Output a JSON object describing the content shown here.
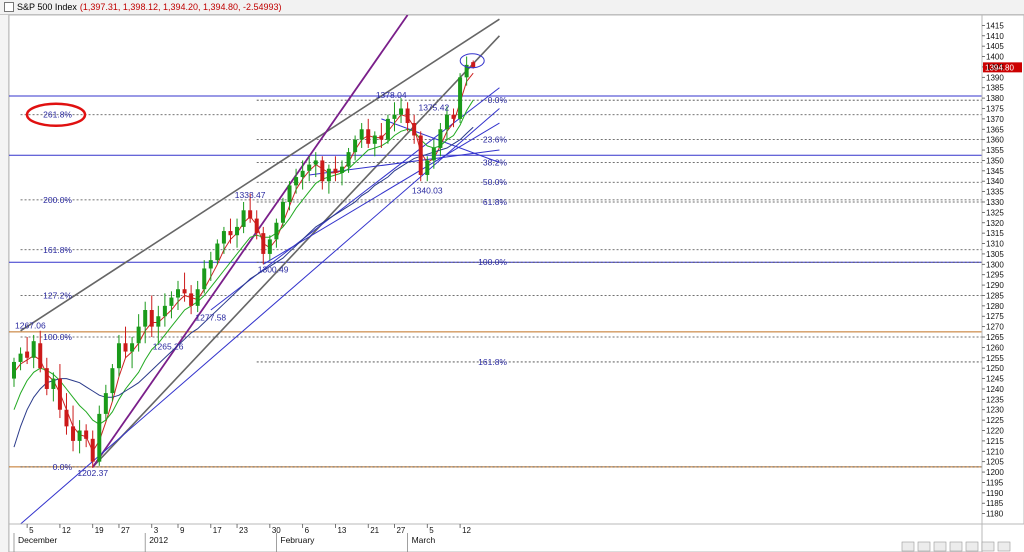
{
  "window": {
    "title": "S&P 500 Index",
    "ohlc": "(1,397.31, 1,398.12, 1,394.20, 1,394.80, -2.54993)"
  },
  "chart_data": {
    "type": "candlestick",
    "instrument": "S&P 500 Index",
    "ylim": [
      1175,
      1420
    ],
    "y_ticks": [
      1180,
      1185,
      1190,
      1195,
      1200,
      1205,
      1210,
      1215,
      1220,
      1225,
      1230,
      1235,
      1240,
      1245,
      1250,
      1255,
      1260,
      1265,
      1270,
      1275,
      1280,
      1285,
      1290,
      1295,
      1300,
      1305,
      1310,
      1315,
      1320,
      1325,
      1330,
      1335,
      1340,
      1345,
      1350,
      1355,
      1360,
      1365,
      1370,
      1375,
      1380,
      1385,
      1390,
      1395,
      1400,
      1405,
      1410,
      1415
    ],
    "last_price_label": "1394.80",
    "x_day_ticks": [
      {
        "label": "5",
        "i": 2
      },
      {
        "label": "12",
        "i": 7
      },
      {
        "label": "19",
        "i": 12
      },
      {
        "label": "27",
        "i": 16
      },
      {
        "label": "3",
        "i": 21
      },
      {
        "label": "9",
        "i": 25
      },
      {
        "label": "17",
        "i": 30
      },
      {
        "label": "23",
        "i": 34
      },
      {
        "label": "30",
        "i": 39
      },
      {
        "label": "6",
        "i": 44
      },
      {
        "label": "13",
        "i": 49
      },
      {
        "label": "21",
        "i": 54
      },
      {
        "label": "27",
        "i": 58
      },
      {
        "label": "5",
        "i": 63
      },
      {
        "label": "12",
        "i": 68
      }
    ],
    "x_month_labels": [
      {
        "label": "December",
        "i": 0
      },
      {
        "label": "2012",
        "i": 20
      },
      {
        "label": "February",
        "i": 40
      },
      {
        "label": "March",
        "i": 60
      }
    ],
    "candles": [
      [
        1245,
        1255,
        1241,
        1253
      ],
      [
        1253,
        1260,
        1249,
        1257
      ],
      [
        1258,
        1265,
        1252,
        1255
      ],
      [
        1255,
        1266,
        1250,
        1263
      ],
      [
        1262,
        1268,
        1248,
        1250
      ],
      [
        1250,
        1255,
        1237,
        1240
      ],
      [
        1240,
        1248,
        1234,
        1245
      ],
      [
        1245,
        1252,
        1226,
        1230
      ],
      [
        1230,
        1238,
        1218,
        1222
      ],
      [
        1222,
        1232,
        1210,
        1215
      ],
      [
        1215,
        1225,
        1209,
        1220
      ],
      [
        1220,
        1223,
        1212,
        1216
      ],
      [
        1216,
        1220,
        1202,
        1205
      ],
      [
        1205,
        1232,
        1203,
        1228
      ],
      [
        1228,
        1242,
        1225,
        1238
      ],
      [
        1238,
        1252,
        1234,
        1250
      ],
      [
        1250,
        1266,
        1246,
        1262
      ],
      [
        1262,
        1270,
        1255,
        1258
      ],
      [
        1258,
        1265,
        1250,
        1262
      ],
      [
        1262,
        1276,
        1258,
        1270
      ],
      [
        1270,
        1282,
        1262,
        1278
      ],
      [
        1278,
        1285,
        1265,
        1270
      ],
      [
        1270,
        1280,
        1262,
        1275
      ],
      [
        1275,
        1286,
        1270,
        1280
      ],
      [
        1280,
        1287,
        1274,
        1284
      ],
      [
        1284,
        1292,
        1278,
        1288
      ],
      [
        1288,
        1296,
        1282,
        1286
      ],
      [
        1286,
        1290,
        1276,
        1280
      ],
      [
        1280,
        1292,
        1277,
        1288
      ],
      [
        1288,
        1302,
        1286,
        1298
      ],
      [
        1298,
        1306,
        1292,
        1302
      ],
      [
        1302,
        1312,
        1300,
        1310
      ],
      [
        1310,
        1318,
        1305,
        1316
      ],
      [
        1316,
        1322,
        1310,
        1314
      ],
      [
        1314,
        1322,
        1308,
        1318
      ],
      [
        1318,
        1330,
        1315,
        1326
      ],
      [
        1326,
        1334,
        1320,
        1322
      ],
      [
        1322,
        1326,
        1312,
        1315
      ],
      [
        1315,
        1318,
        1300,
        1305
      ],
      [
        1305,
        1314,
        1302,
        1312
      ],
      [
        1312,
        1322,
        1308,
        1320
      ],
      [
        1320,
        1332,
        1318,
        1330
      ],
      [
        1330,
        1340,
        1326,
        1338
      ],
      [
        1338,
        1346,
        1334,
        1342
      ],
      [
        1342,
        1350,
        1336,
        1345
      ],
      [
        1345,
        1352,
        1340,
        1348
      ],
      [
        1348,
        1354,
        1342,
        1350
      ],
      [
        1350,
        1352,
        1336,
        1340
      ],
      [
        1340,
        1348,
        1334,
        1346
      ],
      [
        1346,
        1352,
        1340,
        1344
      ],
      [
        1344,
        1350,
        1338,
        1347
      ],
      [
        1347,
        1356,
        1344,
        1354
      ],
      [
        1354,
        1362,
        1350,
        1360
      ],
      [
        1360,
        1368,
        1356,
        1365
      ],
      [
        1365,
        1370,
        1356,
        1358
      ],
      [
        1358,
        1364,
        1352,
        1362
      ],
      [
        1362,
        1368,
        1356,
        1360
      ],
      [
        1360,
        1372,
        1358,
        1370
      ],
      [
        1370,
        1378,
        1364,
        1372
      ],
      [
        1372,
        1380,
        1368,
        1375
      ],
      [
        1375,
        1378,
        1364,
        1368
      ],
      [
        1368,
        1372,
        1358,
        1362
      ],
      [
        1362,
        1364,
        1340,
        1343
      ],
      [
        1343,
        1352,
        1340,
        1350
      ],
      [
        1350,
        1360,
        1346,
        1356
      ],
      [
        1356,
        1368,
        1352,
        1365
      ],
      [
        1365,
        1376,
        1360,
        1372
      ],
      [
        1372,
        1375,
        1366,
        1370
      ],
      [
        1370,
        1392,
        1368,
        1390
      ],
      [
        1390,
        1400,
        1386,
        1396
      ],
      [
        1397.31,
        1398.12,
        1394.2,
        1394.8
      ]
    ],
    "horizontal_lines": [
      {
        "y": 1381,
        "color": "#3333cc",
        "style": "solid",
        "label": ""
      },
      {
        "y": 1352.5,
        "color": "#3333cc",
        "style": "solid",
        "label": ""
      },
      {
        "y": 1301,
        "color": "#3333cc",
        "style": "solid",
        "label": ""
      },
      {
        "y": 1267.5,
        "color": "#c07020",
        "style": "solid",
        "label": ""
      },
      {
        "y": 1202.5,
        "color": "#c07020",
        "style": "solid",
        "label": ""
      }
    ],
    "fib_left": {
      "x_start_i": 1,
      "levels": [
        {
          "y": 1372,
          "label": "261.8%"
        },
        {
          "y": 1331,
          "label": "200.0%"
        },
        {
          "y": 1307,
          "label": "161.8%"
        },
        {
          "y": 1285,
          "label": "127.2%"
        },
        {
          "y": 1265,
          "label": "100.0%"
        },
        {
          "y": 1202.5,
          "label": "0.0%"
        }
      ]
    },
    "fib_right": {
      "x_start_i": 37,
      "levels": [
        {
          "y": 1379,
          "label": "0.0%"
        },
        {
          "y": 1360,
          "label": "23.6%"
        },
        {
          "y": 1349,
          "label": "38.2%"
        },
        {
          "y": 1339.5,
          "label": "50.0%"
        },
        {
          "y": 1330,
          "label": "61.8%"
        },
        {
          "y": 1301,
          "label": "100.0%"
        },
        {
          "y": 1253,
          "label": "161.8%"
        }
      ]
    },
    "trend_lines": [
      {
        "from": [
          1,
          1268
        ],
        "to": [
          74,
          1418
        ],
        "color": "#666666",
        "width": 1.6
      },
      {
        "from": [
          12,
          1202.37
        ],
        "to": [
          74,
          1410
        ],
        "color": "#666666",
        "width": 1.6
      },
      {
        "from": [
          12,
          1202.37
        ],
        "to": [
          60,
          1420
        ],
        "color": "#7a1f8a",
        "width": 1.8
      },
      {
        "from": [
          1,
          1175
        ],
        "to": [
          74,
          1375
        ],
        "color": "#3333cc",
        "width": 1
      },
      {
        "from": [
          30,
          1278
        ],
        "to": [
          74,
          1385
        ],
        "color": "#3333cc",
        "width": 1
      },
      {
        "from": [
          38,
          1300
        ],
        "to": [
          74,
          1368
        ],
        "color": "#3333cc",
        "width": 1
      },
      {
        "from": [
          45,
          1343
        ],
        "to": [
          74,
          1355
        ],
        "color": "#3333cc",
        "width": 1
      },
      {
        "from": [
          56,
          1370
        ],
        "to": [
          74,
          1349
        ],
        "color": "#3333cc",
        "width": 1
      }
    ],
    "annotations": [
      {
        "text": "1202.37",
        "i": 12,
        "y": 1198
      },
      {
        "text": "1267.06",
        "i": 2.5,
        "y": 1269
      },
      {
        "text": "1265.26",
        "i": 23.5,
        "y": 1259
      },
      {
        "text": "1277.58",
        "i": 30,
        "y": 1273
      },
      {
        "text": "1333.47",
        "i": 36,
        "y": 1332
      },
      {
        "text": "1300.49",
        "i": 39.5,
        "y": 1296
      },
      {
        "text": "1378.04",
        "i": 57.5,
        "y": 1380
      },
      {
        "text": "1375.42",
        "i": 64,
        "y": 1374
      },
      {
        "text": "1340.03",
        "i": 63,
        "y": 1334
      }
    ],
    "ma_series": [
      {
        "name": "",
        "color": "#cc2222",
        "values": [
          1248,
          1252,
          1254,
          1256,
          1254,
          1247,
          1244,
          1238,
          1230,
          1222,
          1218,
          1217,
          1210,
          1215,
          1224,
          1234,
          1246,
          1255,
          1258,
          1262,
          1268,
          1272,
          1272,
          1275,
          1278,
          1282,
          1285,
          1284,
          1283,
          1288,
          1294,
          1300,
          1307,
          1312,
          1315,
          1320,
          1323,
          1319,
          1310,
          1308,
          1312,
          1320,
          1328,
          1336,
          1341,
          1345,
          1348,
          1346,
          1344,
          1344,
          1345,
          1349,
          1355,
          1360,
          1362,
          1361,
          1361,
          1364,
          1368,
          1372,
          1371,
          1366,
          1354,
          1349,
          1351,
          1357,
          1364,
          1368,
          1378,
          1388,
          1392
        ]
      },
      {
        "name": "",
        "color": "#22aa22",
        "values": [
          1230,
          1238,
          1244,
          1248,
          1250,
          1249,
          1247,
          1244,
          1240,
          1236,
          1232,
          1229,
          1225,
          1223,
          1225,
          1229,
          1235,
          1240,
          1244,
          1248,
          1254,
          1259,
          1262,
          1266,
          1270,
          1274,
          1278,
          1280,
          1282,
          1285,
          1289,
          1293,
          1297,
          1301,
          1305,
          1309,
          1313,
          1314,
          1313,
          1313,
          1315,
          1318,
          1322,
          1327,
          1331,
          1335,
          1339,
          1341,
          1342,
          1343,
          1344,
          1346,
          1349,
          1352,
          1355,
          1356,
          1357,
          1359,
          1362,
          1364,
          1365,
          1364,
          1360,
          1357,
          1356,
          1357,
          1360,
          1362,
          1367,
          1374,
          1379
        ]
      },
      {
        "name": "",
        "color": "#2a3a8a",
        "values": [
          1212,
          1222,
          1230,
          1236,
          1240,
          1243,
          1244,
          1245,
          1245,
          1244,
          1243,
          1241,
          1239,
          1237,
          1236,
          1236,
          1237,
          1239,
          1241,
          1243,
          1246,
          1249,
          1252,
          1255,
          1258,
          1261,
          1264,
          1267,
          1269,
          1272,
          1275,
          1278,
          1281,
          1284,
          1287,
          1290,
          1293,
          1295,
          1297,
          1299,
          1301,
          1303,
          1306,
          1309,
          1312,
          1315,
          1318,
          1320,
          1322,
          1324,
          1326,
          1328,
          1330,
          1333,
          1335,
          1338,
          1340,
          1342,
          1345,
          1347,
          1349,
          1351,
          1352,
          1353,
          1354,
          1355,
          1356,
          1358,
          1360,
          1363,
          1366
        ]
      }
    ]
  }
}
